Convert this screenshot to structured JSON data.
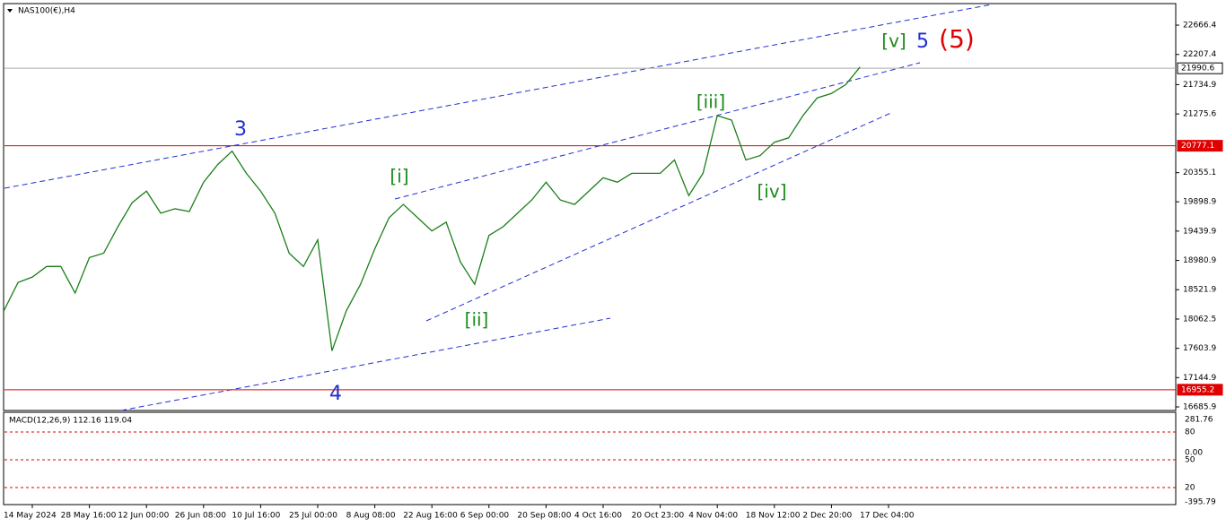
{
  "chart_data": [
    {
      "type": "line",
      "title": "NAS100(€),H4",
      "categories": [
        null,
        null,
        "14 May 2024",
        null,
        null,
        null,
        "28 May 16:00",
        null,
        null,
        null,
        "12 Jun 00:00",
        null,
        null,
        null,
        "26 Jun 08:00",
        null,
        null,
        null,
        "10 Jul 16:00",
        null,
        null,
        null,
        "25 Jul 00:00",
        null,
        null,
        null,
        "8 Aug 08:00",
        null,
        null,
        null,
        "22 Aug 16:00",
        null,
        null,
        null,
        "6 Sep 00:00",
        null,
        null,
        null,
        "20 Sep 08:00",
        null,
        null,
        null,
        "4 Oct 16:00",
        null,
        null,
        null,
        "20 Oct 23:00",
        null,
        null,
        null,
        "4 Nov 04:00",
        null,
        null,
        null,
        "18 Nov 12:00",
        null,
        null,
        null,
        "2 Dec 20:00",
        null,
        null,
        null,
        "17 Dec 04:00"
      ],
      "series": [
        {
          "name": "NAS100",
          "color": "#1a7f1a",
          "values": [
            18190,
            18635,
            18720,
            18886,
            18886,
            18470,
            19025,
            19094,
            19510,
            19886,
            20066,
            19720,
            19790,
            19747,
            20206,
            20484,
            20693,
            20345,
            20066,
            19720,
            19094,
            18886,
            19303,
            17565,
            18190,
            18607,
            19163,
            19650,
            19858,
            19650,
            19442,
            19580,
            18955,
            18607,
            19372,
            19510,
            19720,
            19928,
            20206,
            19928,
            19858,
            20066,
            20275,
            20206,
            20345,
            20345,
            20345,
            20554,
            19997,
            20345,
            21249,
            21179,
            20554,
            20623,
            20832,
            20901,
            21249,
            21527,
            21596,
            21735,
            22010,
            null,
            null
          ]
        }
      ],
      "ylim": [
        16630,
        22990
      ],
      "yticks": [
        22666.4,
        22207.4,
        21734.9,
        21275.6,
        20355.1,
        19898.9,
        19439.9,
        18980.9,
        18521.9,
        18062.5,
        17603.9,
        17144.9,
        16685.9
      ],
      "levels": [
        {
          "value": 21990.6,
          "color": "#aaaaaa"
        },
        {
          "value": 20777.1,
          "color": "#e00000"
        },
        {
          "value": 16955.2,
          "color": "#e00000"
        }
      ],
      "annotations": [
        "3",
        "4",
        "[i]",
        "[ii]",
        "[iii]",
        "[iv]",
        "[v]",
        "5",
        "(5)"
      ]
    },
    {
      "type": "macd",
      "title": "MACD(12,26,9) 112.16 119.04",
      "axis_labels": [
        "281.76",
        "80",
        "0.00",
        "50",
        "20",
        "-395.79"
      ]
    }
  ]
}
